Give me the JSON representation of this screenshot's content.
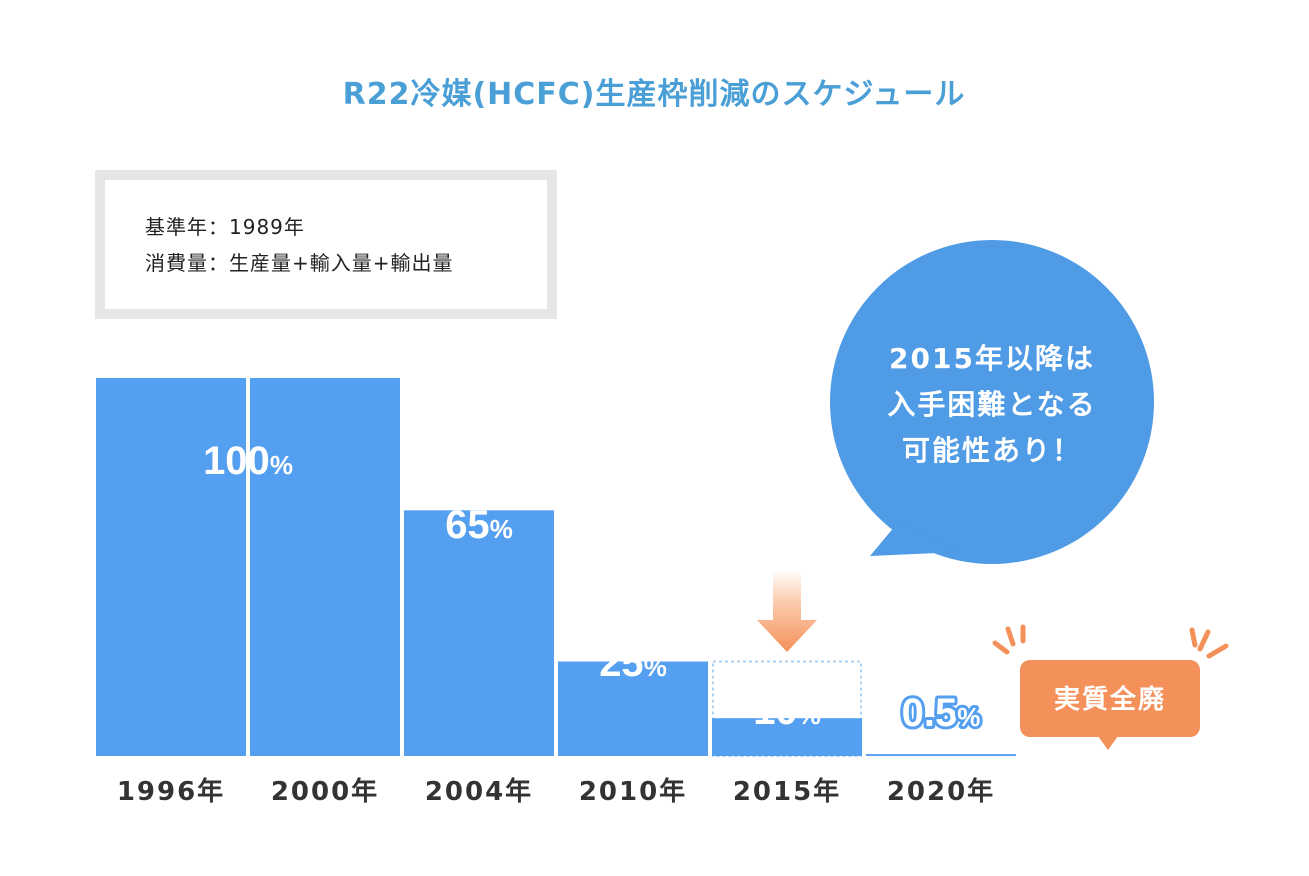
{
  "chart_data": {
    "type": "bar",
    "title": "R22冷媒(HCFC)生産枠削減のスケジュール",
    "notes": [
      "基準年：1989年",
      "消費量：生産量+輸入量+輸出量"
    ],
    "categories": [
      "1996年",
      "2000年",
      "2004年",
      "2010年",
      "2015年",
      "2020年"
    ],
    "values": [
      100,
      100,
      65,
      25,
      10,
      0.5
    ],
    "value_labels": [
      {
        "num": "100",
        "unit": "%"
      },
      {
        "num": "65",
        "unit": "%"
      },
      {
        "num": "25",
        "unit": "%"
      },
      {
        "num": "10",
        "unit": "%"
      },
      {
        "num": "0.5",
        "unit": "%"
      }
    ],
    "ylim": [
      0,
      100
    ],
    "callout_lines": [
      "2015年以降は",
      "入手困難となる",
      "可能性あり！"
    ],
    "badge": "実質全廃",
    "colors": {
      "bar": "#549ff0",
      "title": "#4a9fd6",
      "bubble": "#4f9be6",
      "badge": "#f4915a",
      "arrow": "#f4915a",
      "note_border": "#e6e6e6",
      "dotted_outline": "#a9d2f3"
    },
    "icons": {
      "arrow": "down-arrow-icon",
      "spark": "spark-lines-icon"
    }
  }
}
